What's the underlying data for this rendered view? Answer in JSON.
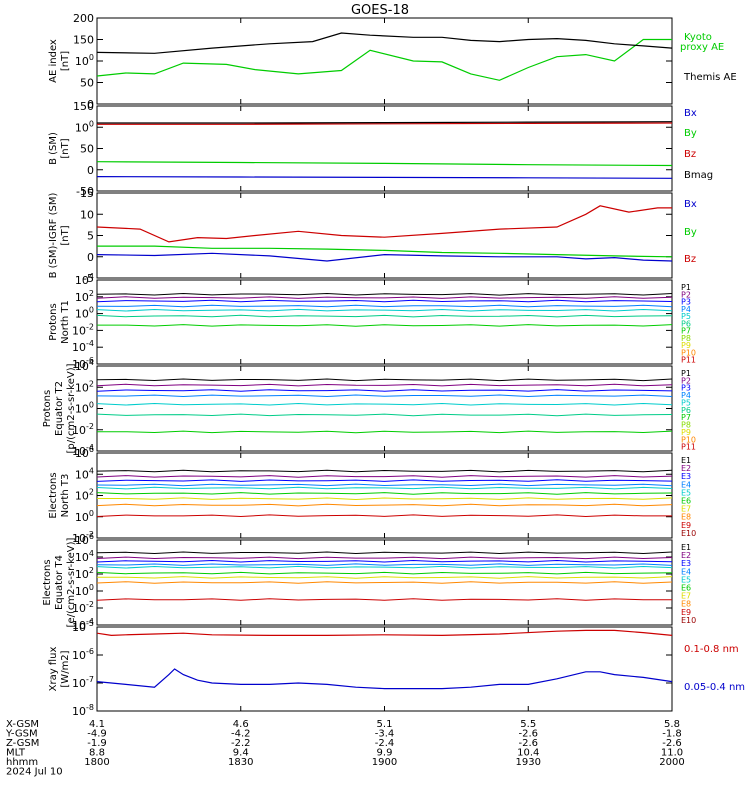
{
  "chart_data": {
    "title": "GOES-18",
    "type": "line",
    "x_axis": {
      "range": [
        "1800",
        "2000"
      ],
      "row_labels": [
        "X-GSM",
        "Y-GSM",
        "Z-GSM",
        "MLT",
        "hhmm",
        "2024 Jul 10"
      ],
      "ticks": [
        {
          "x": "4.1",
          "y": "-4.9",
          "z": "-1.9",
          "mlt": "8.8",
          "hhmm": "1800"
        },
        {
          "x": "4.6",
          "y": "-4.2",
          "z": "-2.2",
          "mlt": "9.4",
          "hhmm": "1830"
        },
        {
          "x": "5.1",
          "y": "-3.4",
          "z": "-2.4",
          "mlt": "9.9",
          "hhmm": "1900"
        },
        {
          "x": "5.5",
          "y": "-2.6",
          "z": "-2.6",
          "mlt": "10.4",
          "hhmm": "1930"
        },
        {
          "x": "5.8",
          "y": "-1.8",
          "z": "-2.6",
          "mlt": "11.0",
          "hhmm": "2000"
        }
      ]
    },
    "panels": [
      {
        "id": "ae",
        "ylabel": [
          "AE index",
          "[nT]"
        ],
        "ylim": [
          0,
          200
        ],
        "yticks": [
          "0",
          "50",
          "100",
          "150",
          "200"
        ],
        "series": [
          {
            "name": "Kyoto proxy AE",
            "color": "#00cc00",
            "t": [
              0,
              10,
              20,
              30,
              45,
              55,
              70,
              85,
              95,
              110,
              120,
              130,
              140,
              150,
              160,
              170,
              180,
              190,
              200
            ],
            "v": [
              65,
              72,
              70,
              95,
              92,
              80,
              70,
              78,
              125,
              100,
              98,
              70,
              55,
              85,
              110,
              115,
              100,
              150,
              150
            ]
          },
          {
            "name": "Themis AE",
            "color": "#000000",
            "t": [
              0,
              20,
              40,
              60,
              75,
              85,
              95,
              110,
              120,
              130,
              140,
              150,
              160,
              170,
              180,
              190,
              200
            ],
            "v": [
              120,
              118,
              130,
              140,
              145,
              165,
              160,
              155,
              155,
              148,
              145,
              150,
              152,
              148,
              140,
              135,
              130
            ]
          }
        ]
      },
      {
        "id": "bsm",
        "ylabel": [
          "B (SM)",
          "[nT]"
        ],
        "ylim": [
          -50,
          150
        ],
        "yticks": [
          "-50",
          "0",
          "50",
          "100",
          "150"
        ],
        "series": [
          {
            "name": "Bx",
            "color": "#0000cc",
            "t": [
              0,
              50,
              100,
              150,
              200
            ],
            "v": [
              -16,
              -17,
              -18,
              -19,
              -20
            ]
          },
          {
            "name": "By",
            "color": "#00cc00",
            "t": [
              0,
              50,
              100,
              150,
              200
            ],
            "v": [
              19,
              17,
              15,
              12,
              10
            ]
          },
          {
            "name": "Bz",
            "color": "#cc0000",
            "t": [
              0,
              50,
              100,
              150,
              200
            ],
            "v": [
              107,
              107,
              108,
              109,
              110
            ]
          },
          {
            "name": "Bmag",
            "color": "#000000",
            "t": [
              0,
              50,
              100,
              150,
              200
            ],
            "v": [
              110,
              110,
              111,
              112,
              113
            ]
          }
        ]
      },
      {
        "id": "bsmigrf",
        "ylabel": [
          "B (SM)-IGRF (SM)",
          "[nT]"
        ],
        "ylim": [
          -5,
          15
        ],
        "yticks": [
          "-5",
          "0",
          "5",
          "10",
          "15"
        ],
        "series": [
          {
            "name": "Bx",
            "color": "#0000cc",
            "t": [
              0,
              20,
              40,
              60,
              80,
              100,
              120,
              140,
              160,
              170,
              180,
              190,
              200
            ],
            "v": [
              0.5,
              0.3,
              0.8,
              0.2,
              -1,
              0.5,
              0.2,
              0,
              0,
              -0.5,
              -0.2,
              -0.8,
              -1
            ]
          },
          {
            "name": "By",
            "color": "#00cc00",
            "t": [
              0,
              20,
              40,
              60,
              80,
              100,
              120,
              140,
              160,
              180,
              200
            ],
            "v": [
              2.5,
              2.5,
              2,
              2,
              1.8,
              1.5,
              1,
              0.8,
              0.5,
              0.2,
              0
            ]
          },
          {
            "name": "Bz",
            "color": "#cc0000",
            "t": [
              0,
              15,
              25,
              35,
              45,
              55,
              70,
              85,
              100,
              120,
              140,
              160,
              170,
              175,
              185,
              195,
              200
            ],
            "v": [
              7,
              6.5,
              3.5,
              4.5,
              4.3,
              5,
              6,
              5,
              4.6,
              5.5,
              6.5,
              7,
              10,
              12,
              10.5,
              11.5,
              11.5
            ]
          }
        ]
      },
      {
        "id": "protons-t1",
        "ylabel": [
          "Protons",
          "North T1"
        ],
        "ylim_exp": [
          -6,
          4
        ],
        "yticks": [
          "10-6",
          "10-4",
          "10-2",
          "100",
          "102",
          "104"
        ],
        "legend": [
          "P1",
          "P2",
          "P3",
          "P4",
          "P5",
          "P6",
          "P7",
          "P8",
          "P9",
          "P10",
          "P11"
        ],
        "colors": [
          "#000000",
          "#800080",
          "#0000ff",
          "#0080ff",
          "#00cccc",
          "#00cc88",
          "#00cc00",
          "#88dd00",
          "#dddd00",
          "#ff8800",
          "#cc0000"
        ],
        "levels": [
          2.3,
          1.9,
          1.5,
          0.9,
          0.4,
          -0.3,
          -1.4
        ]
      },
      {
        "id": "protons-t2",
        "ylabel": [
          "Protons",
          "Equator T2",
          "[p/(cm2-s-sr-keV)]"
        ],
        "ylim_exp": [
          -4,
          4
        ],
        "yticks": [
          "10-4",
          "10-2",
          "100",
          "102",
          "104"
        ],
        "legend": [
          "P1",
          "P2",
          "P3",
          "P4",
          "P5",
          "P6",
          "P7",
          "P8",
          "P9",
          "P10",
          "P11"
        ],
        "colors": [
          "#000000",
          "#800080",
          "#0000ff",
          "#0080ff",
          "#00cccc",
          "#00cc88",
          "#00cc00",
          "#88dd00",
          "#dddd00",
          "#ff8800",
          "#cc0000"
        ],
        "levels": [
          2.7,
          2.2,
          1.7,
          1.2,
          0.4,
          -0.6,
          -2.2
        ]
      },
      {
        "id": "electrons-t3",
        "ylabel": [
          "Electrons",
          "North T3"
        ],
        "ylim_exp": [
          -2,
          6
        ],
        "yticks": [
          "10-2",
          "100",
          "102",
          "104",
          "106"
        ],
        "legend": [
          "E1",
          "E2",
          "E3",
          "E4",
          "E5",
          "E6",
          "E7",
          "E8",
          "E9",
          "E10"
        ],
        "colors": [
          "#000000",
          "#800080",
          "#0000ff",
          "#0080ff",
          "#00cccc",
          "#00cc00",
          "#dddd00",
          "#ff8800",
          "#cc0000",
          "#990000"
        ],
        "levels": [
          4.3,
          3.8,
          3.4,
          3.0,
          2.7,
          2.2,
          1.7,
          1.1,
          0.1
        ]
      },
      {
        "id": "electrons-t4",
        "ylabel": [
          "Electrons",
          "Equator T4",
          "[e/(cm2-s-sr-keV)]"
        ],
        "ylim_exp": [
          -4,
          6
        ],
        "yticks": [
          "10-4",
          "10-2",
          "100",
          "102",
          "104",
          "106"
        ],
        "legend": [
          "E1",
          "E2",
          "E3",
          "E4",
          "E5",
          "E6",
          "E7",
          "E8",
          "E9",
          "E10"
        ],
        "colors": [
          "#000000",
          "#800080",
          "#0000ff",
          "#0080ff",
          "#00cccc",
          "#00cc00",
          "#dddd00",
          "#ff8800",
          "#cc0000",
          "#990000"
        ],
        "levels": [
          4.5,
          3.9,
          3.5,
          3.1,
          2.8,
          2.1,
          1.6,
          1.0,
          -1.0
        ]
      },
      {
        "id": "xray",
        "ylabel": [
          "Xray flux",
          "[W/m2]"
        ],
        "ylim_exp": [
          -8,
          -5
        ],
        "yticks": [
          "10-8",
          "10-7",
          "10-6",
          "10-5"
        ],
        "series": [
          {
            "name": "0.1-0.8 nm",
            "color": "#cc0000",
            "t": [
              0,
              5,
              10,
              20,
              30,
              40,
              60,
              80,
              100,
              120,
              140,
              160,
              170,
              180,
              190,
              200
            ],
            "v": [
              -5.22,
              -5.3,
              -5.28,
              -5.25,
              -5.22,
              -5.28,
              -5.3,
              -5.3,
              -5.28,
              -5.3,
              -5.25,
              -5.15,
              -5.12,
              -5.12,
              -5.2,
              -5.3
            ]
          },
          {
            "name": "0.05-0.4 nm",
            "color": "#0000cc",
            "t": [
              0,
              10,
              20,
              25,
              27,
              30,
              35,
              40,
              50,
              60,
              70,
              80,
              90,
              100,
              110,
              120,
              130,
              140,
              150,
              160,
              170,
              175,
              180,
              190,
              200
            ],
            "v": [
              -6.95,
              -7.05,
              -7.15,
              -6.7,
              -6.5,
              -6.7,
              -6.9,
              -7.0,
              -7.05,
              -7.05,
              -7.0,
              -7.05,
              -7.15,
              -7.2,
              -7.2,
              -7.2,
              -7.15,
              -7.05,
              -7.05,
              -6.85,
              -6.6,
              -6.6,
              -6.7,
              -6.8,
              -6.95
            ]
          }
        ]
      }
    ]
  }
}
